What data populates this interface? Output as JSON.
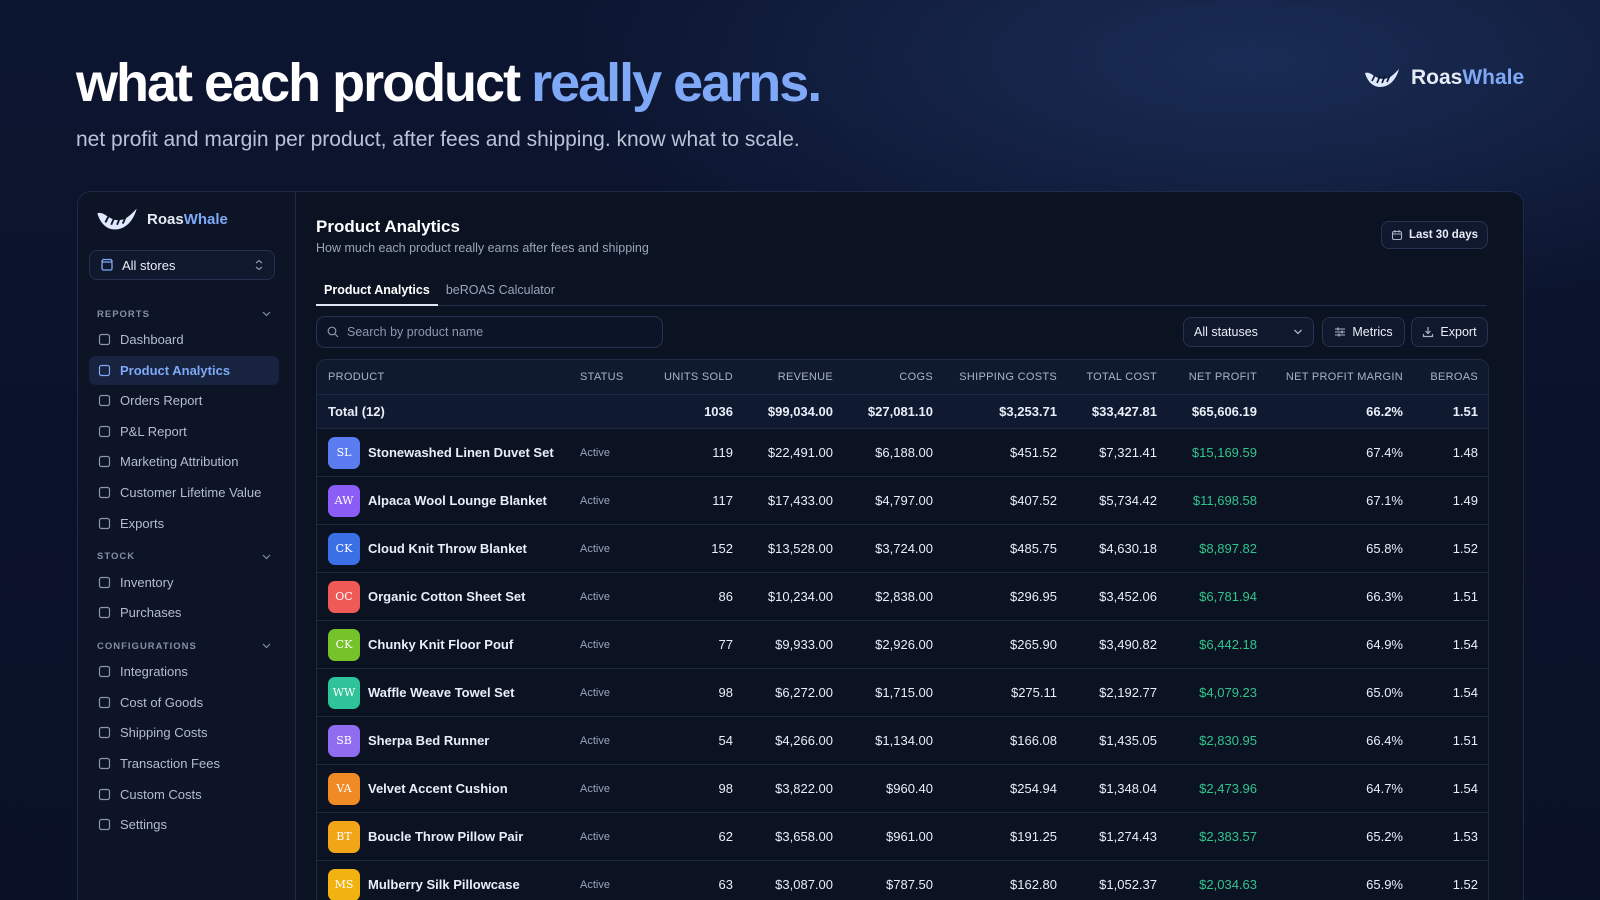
{
  "header": {
    "title": "what each product",
    "title_highlight": "really earns.",
    "subtitle": "net profit and margin per product, after fees and shipping. know what to scale.",
    "brand": {
      "name": "Roas",
      "highlight": "Whale"
    }
  },
  "sidebar": {
    "brand": {
      "name": "Roas",
      "highlight": "Whale"
    },
    "store_selector": "All stores",
    "sections": [
      {
        "title": "REPORTS",
        "items": [
          {
            "label": "Dashboard"
          },
          {
            "label": "Product Analytics",
            "active": true
          },
          {
            "label": "Orders Report"
          },
          {
            "label": "P&L Report"
          },
          {
            "label": "Marketing Attribution"
          },
          {
            "label": "Customer Lifetime Value"
          },
          {
            "label": "Exports"
          }
        ]
      },
      {
        "title": "STOCK",
        "items": [
          {
            "label": "Inventory"
          },
          {
            "label": "Purchases"
          }
        ]
      },
      {
        "title": "CONFIGURATIONS",
        "items": [
          {
            "label": "Integrations"
          },
          {
            "label": "Cost of Goods"
          },
          {
            "label": "Shipping Costs"
          },
          {
            "label": "Transaction Fees"
          },
          {
            "label": "Custom Costs"
          },
          {
            "label": "Settings"
          }
        ]
      }
    ]
  },
  "main": {
    "title": "Product Analytics",
    "subtitle": "How much each product really earns after fees and shipping",
    "date_range": "Last 30 days",
    "tabs": [
      {
        "label": "Product Analytics",
        "active": true
      },
      {
        "label": "beROAS Calculator"
      }
    ],
    "search_placeholder": "Search by product name",
    "status_filter": "All statuses",
    "buttons": [
      "Metrics",
      "Export"
    ]
  },
  "table": {
    "columns": [
      "PRODUCT",
      "STATUS",
      "UNITS SOLD",
      "REVENUE",
      "COGS",
      "SHIPPING COSTS",
      "TOTAL COST",
      "NET PROFIT",
      "NET PROFIT MARGIN",
      "BEROAS"
    ],
    "total": {
      "label": "Total (12)",
      "cells": [
        "1036",
        "$99,034.00",
        "$27,081.10",
        "$3,253.71",
        "$33,427.81",
        "$65,606.19",
        "66.2%",
        "1.51"
      ]
    },
    "rows": [
      {
        "initials": "SL",
        "color": "#5b7cf0",
        "name": "Stonewashed Linen Duvet Set",
        "status": "Active",
        "cells": [
          "119",
          "$22,491.00",
          "$6,188.00",
          "$451.52",
          "$7,321.41",
          "$15,169.59",
          "67.4%",
          "1.48"
        ]
      },
      {
        "initials": "AW",
        "color": "#8b5cf6",
        "name": "Alpaca Wool Lounge Blanket",
        "status": "Active",
        "cells": [
          "117",
          "$17,433.00",
          "$4,797.00",
          "$407.52",
          "$5,734.42",
          "$11,698.58",
          "67.1%",
          "1.49"
        ]
      },
      {
        "initials": "CK",
        "color": "#3b6fe6",
        "name": "Cloud Knit Throw Blanket",
        "status": "Active",
        "cells": [
          "152",
          "$13,528.00",
          "$3,724.00",
          "$485.75",
          "$4,630.18",
          "$8,897.82",
          "65.8%",
          "1.52"
        ]
      },
      {
        "initials": "OC",
        "color": "#ef5a57",
        "name": "Organic Cotton Sheet Set",
        "status": "Active",
        "cells": [
          "86",
          "$10,234.00",
          "$2,838.00",
          "$296.95",
          "$3,452.06",
          "$6,781.94",
          "66.3%",
          "1.51"
        ]
      },
      {
        "initials": "CK",
        "color": "#76c22a",
        "name": "Chunky Knit Floor Pouf",
        "status": "Active",
        "cells": [
          "77",
          "$9,933.00",
          "$2,926.00",
          "$265.90",
          "$3,490.82",
          "$6,442.18",
          "64.9%",
          "1.54"
        ]
      },
      {
        "initials": "WW",
        "color": "#2fc39a",
        "name": "Waffle Weave Towel Set",
        "status": "Active",
        "cells": [
          "98",
          "$6,272.00",
          "$1,715.00",
          "$275.11",
          "$2,192.77",
          "$4,079.23",
          "65.0%",
          "1.54"
        ]
      },
      {
        "initials": "SB",
        "color": "#8f6cf0",
        "name": "Sherpa Bed Runner",
        "status": "Active",
        "cells": [
          "54",
          "$4,266.00",
          "$1,134.00",
          "$166.08",
          "$1,435.05",
          "$2,830.95",
          "66.4%",
          "1.51"
        ]
      },
      {
        "initials": "VA",
        "color": "#f08a24",
        "name": "Velvet Accent Cushion",
        "status": "Active",
        "cells": [
          "98",
          "$3,822.00",
          "$960.40",
          "$254.94",
          "$1,348.04",
          "$2,473.96",
          "64.7%",
          "1.54"
        ]
      },
      {
        "initials": "BT",
        "color": "#f2a516",
        "name": "Boucle Throw Pillow Pair",
        "status": "Active",
        "cells": [
          "62",
          "$3,658.00",
          "$961.00",
          "$191.25",
          "$1,274.43",
          "$2,383.57",
          "65.2%",
          "1.53"
        ]
      },
      {
        "initials": "MS",
        "color": "#f2b20f",
        "name": "Mulberry Silk Pillowcase",
        "status": "Active",
        "cells": [
          "63",
          "$3,087.00",
          "$787.50",
          "$162.80",
          "$1,052.37",
          "$2,034.63",
          "65.9%",
          "1.52"
        ]
      }
    ]
  }
}
